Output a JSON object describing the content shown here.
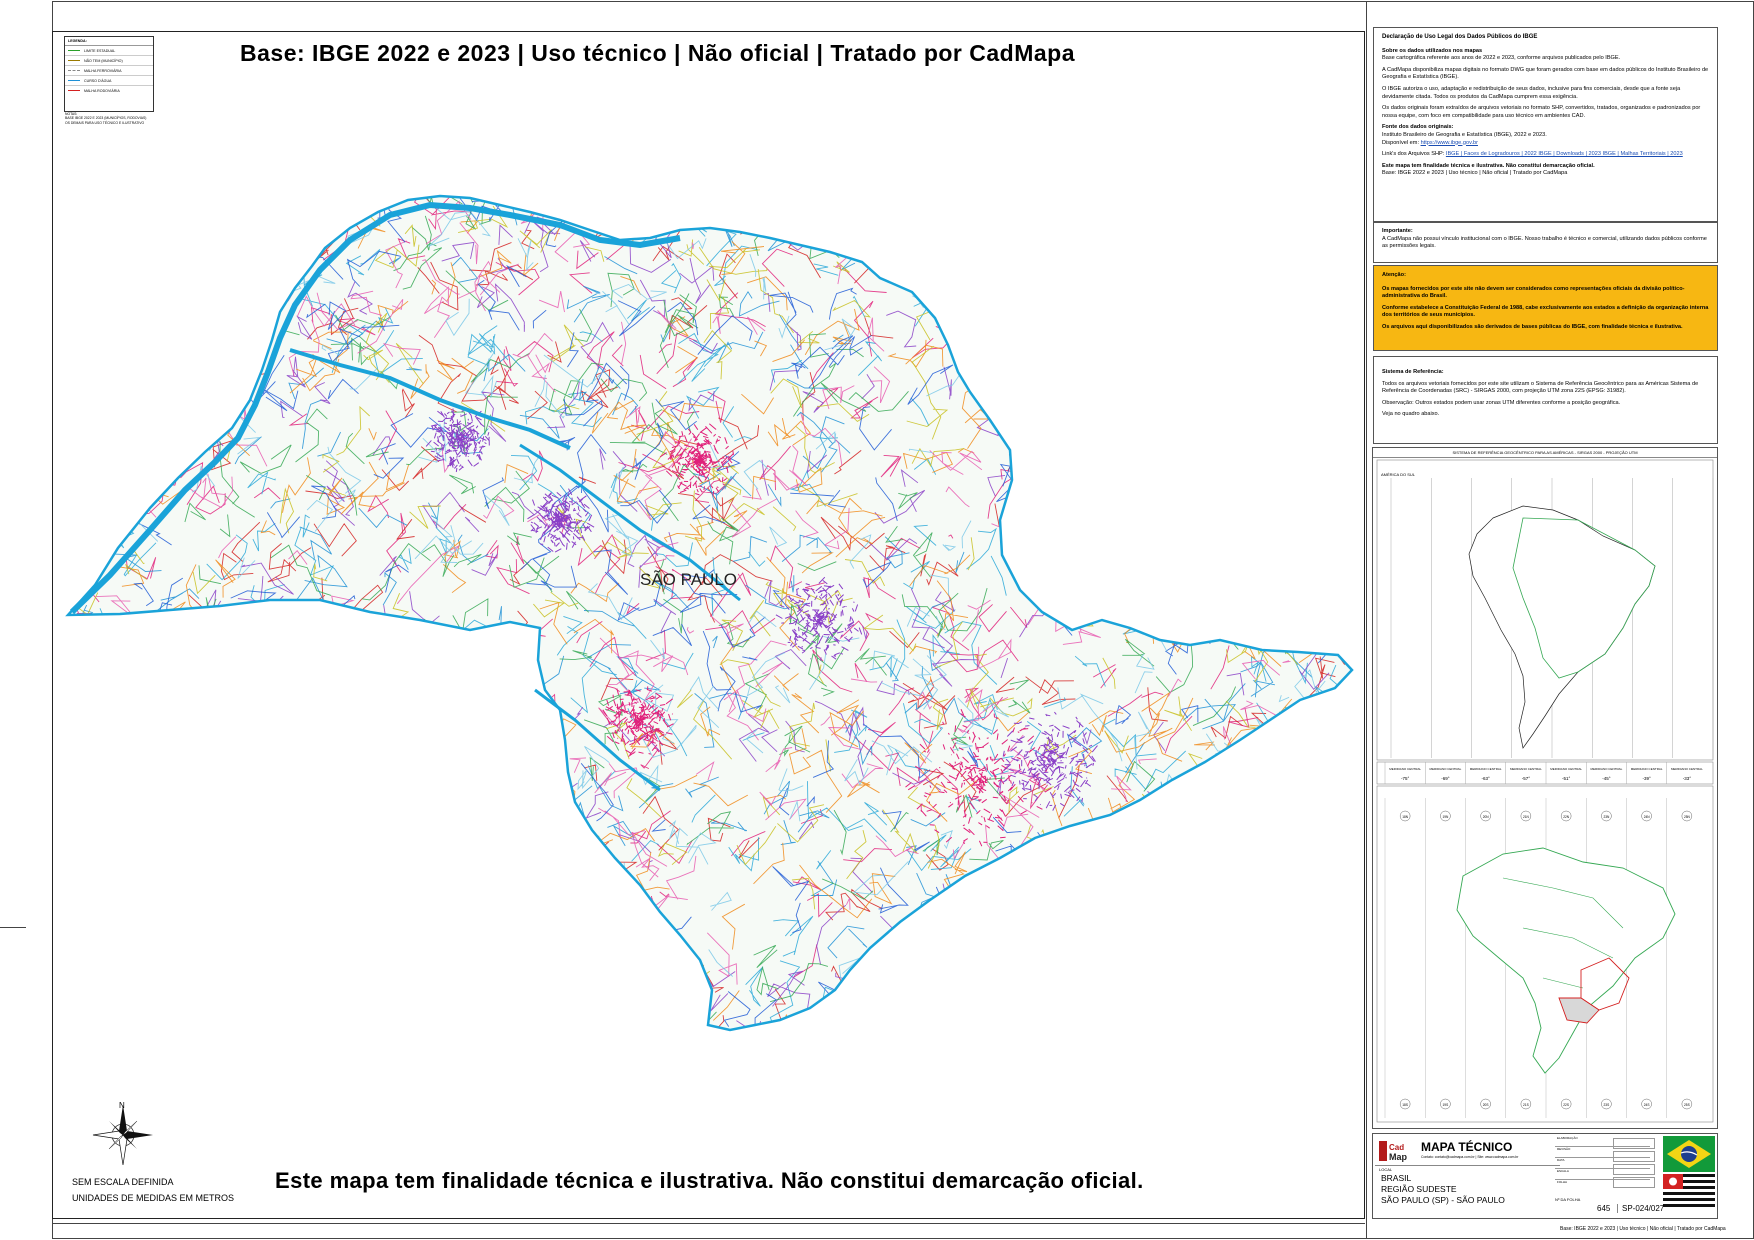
{
  "header": {
    "title": "Base: IBGE 2022 e 2023 | Uso técnico | Não oficial | Tratado por CadMapa"
  },
  "map": {
    "state_label": "SÃO PAULO",
    "north_label": "N"
  },
  "legend": {
    "title": "LEGENDA:",
    "items": [
      {
        "label": "LIMITE ESTADUAL",
        "color": "#2aa02a"
      },
      {
        "label": "NÃO TEM (MUNICÍPIO)",
        "color": "#9a7a00"
      },
      {
        "label": "MALHA FERROVIÁRIA",
        "color": "#888888"
      },
      {
        "label": "CURSO D'ÁGUA",
        "color": "#1e90d6"
      },
      {
        "label": "MALHA RODOVIÁRIA",
        "color": "#d42020"
      }
    ],
    "notes": [
      "NOTAS:",
      "BASE IBGE 2022 E 2023 (MUNICÍPIOS, RODOVIAS)",
      "OS DEMAIS PARA USO TÉCNICO E ILUSTRATIVO"
    ]
  },
  "scale": {
    "line1": "SEM ESCALA DEFINIDA",
    "line2": "UNIDADES DE MEDIDAS EM METROS"
  },
  "footer": {
    "note": "Este mapa tem finalidade técnica e ilustrativa. Não constitui demarcação oficial.",
    "bottom_right": "Base: IBGE 2022 e 2023 | Uso técnico | Não oficial | Tratado por CadMapa"
  },
  "declaration": {
    "title": "Declaração de Uso Legal dos Dados Públicos do IBGE",
    "s1_title": "Sobre os dados utilizados nos mapas",
    "s1_p1": "Base cartográfica referente aos anos de 2022 e 2023, conforme arquivos publicados pelo IBGE.",
    "s1_p2": "A CadMapa disponibiliza mapas digitais no formato DWG que foram gerados com base em dados públicos do Instituto Brasileiro de Geografia e Estatística (IBGE).",
    "s1_p3": "O IBGE autoriza o uso, adaptação e redistribuição de seus dados, inclusive para fins comerciais, desde que a fonte seja devidamente citada. Todos os produtos da CadMapa cumprem essa exigência.",
    "s1_p4": "Os dados originais foram extraídos de arquivos vetoriais no formato SHP, convertidos, tratados, organizados e padronizados por nossa equipe, com foco em compatibilidade para uso técnico em ambientes CAD.",
    "s2_title": "Fonte dos dados originais:",
    "s2_p1": "Instituto Brasileiro de Geografia e Estatística (IBGE), 2022 e 2023.",
    "s2_p2_label": "Disponível em:",
    "s2_p2_link": "https://www.ibge.gov.br",
    "links_label": "Link's dos Arquivos SHP:",
    "links": "IBGE | Faces de Logradouros | 2022   IBGE | Downloads | 2023   IBGE | Malhas Territoriais | 2023",
    "s3_title": "Este mapa tem finalidade técnica e ilustrativa. Não constitui demarcação oficial.",
    "s3_p1": "Base: IBGE 2022 e 2023 | Uso técnico | Não oficial | Tratado por CadMapa"
  },
  "important": {
    "title": "Importante:",
    "text": "A CadMapa não possui vínculo institucional com o IBGE. Nosso trabalho é técnico e comercial, utilizando dados públicos conforme as permissões legais."
  },
  "attention": {
    "title": "Atenção:",
    "p1": "Os mapas fornecidos por este site não devem ser considerados como representações oficiais da divisão político-administrativa do Brasil.",
    "p2": "Conforme estabelece a Constituição Federal de 1988, cabe exclusivamente aos estados a definição da organização interna dos territórios de seus municípios.",
    "p3": "Os arquivos aqui disponibilizados são derivados de bases públicas do IBGE, com finalidade técnica e ilustrativa."
  },
  "reference": {
    "title": "Sistema de Referência:",
    "p1": "Todos os arquivos vetoriais fornecidos por este site utilizam o Sistema de Referência Geocêntrico para as Américas Sistema de Referência de Coordenadas (SRC) - SIRGAS 2000, com projeção UTM zona 22S (EPSG: 31982).",
    "p2": "Observação: Outros estados podem usar zonas UTM diferentes conforme a posição geográfica.",
    "p3": "Veja no quadro abaixo."
  },
  "inset": {
    "header": "SISTEMA DE REFERÊNCIA GEOCÊNTRICO PARA AS AMÉRICAS - SIRGAS 2000 - PROJEÇÃO UTM",
    "continent_label": "AMÉRICA DO SUL",
    "meridian_label": "MERIDIANO CENTRAL",
    "meridians": [
      "-75°",
      "-69°",
      "-63°",
      "-57°",
      "-51°",
      "-45°",
      "-39°",
      "-33°"
    ],
    "zones_top": [
      "18N",
      "19N",
      "20N",
      "21N",
      "22N",
      "23N",
      "24N",
      "25N"
    ],
    "zones_bottom": [
      "18S",
      "19S",
      "20S",
      "21S",
      "22S",
      "23S",
      "24S",
      "25S"
    ]
  },
  "titleblock": {
    "brand": "CadMapa",
    "product": "MAPA TÉCNICO",
    "contact": "Contato: contato@cadmapa.com.br | Site: www.cadmapa.com.br",
    "loc_label": "LOCAL",
    "country": "BRASIL",
    "region": "REGIÃO SUDESTE",
    "state": "SÃO PAULO (SP) - SÃO PAULO",
    "fields": [
      "ELABORAÇÃO",
      "REVISÃO",
      "DATA",
      "ESCALA",
      "FOLHA"
    ],
    "sheet_label": "Nº DA FOLHA",
    "sheet_number": "645",
    "code": "SP-024/027"
  }
}
